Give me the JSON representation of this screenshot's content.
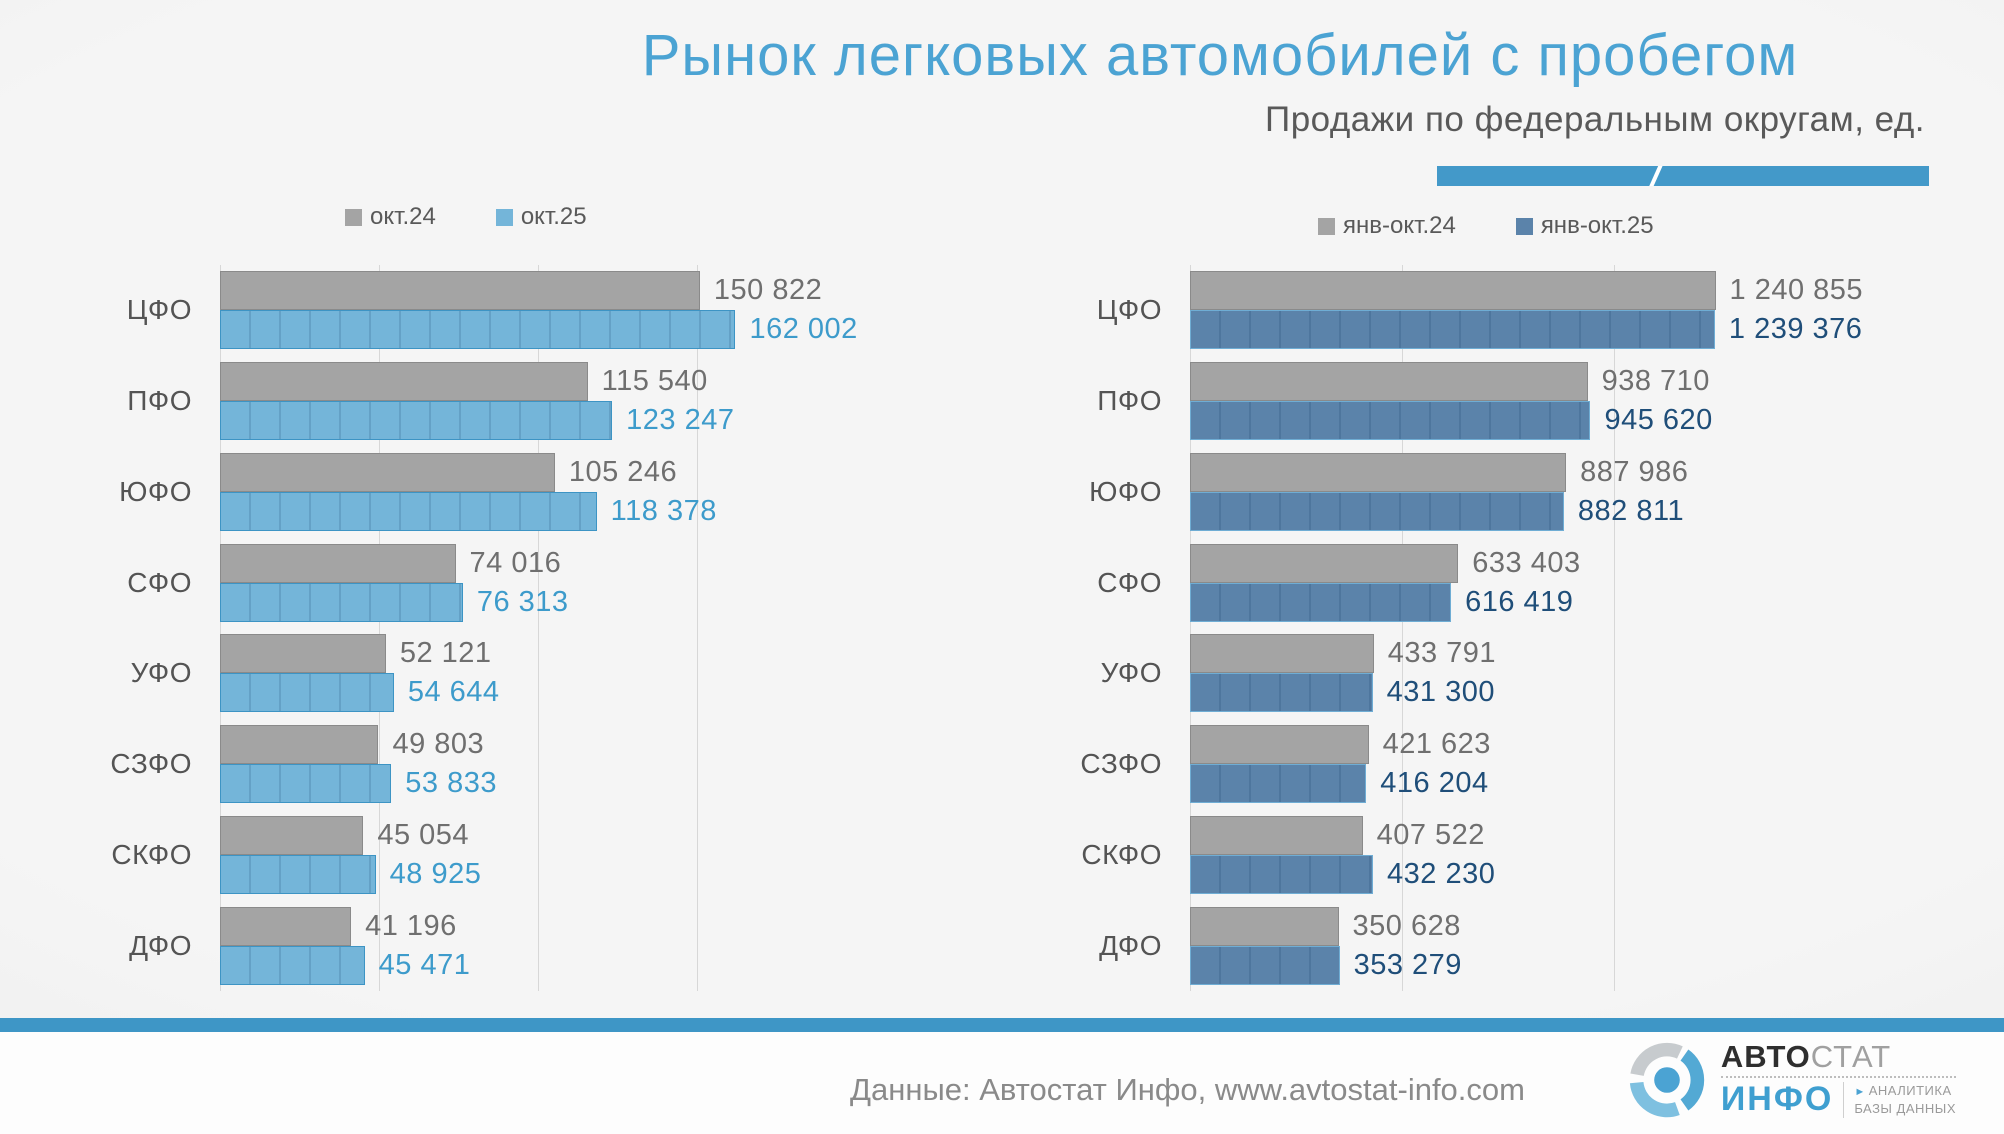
{
  "page": {
    "title": "Рынок легковых автомобилей с пробегом",
    "subtitle": "Продажи по федеральным округам, ед.",
    "footer": {
      "source_text": "Данные: Автостат Инфо, www.avtostat-info.com"
    },
    "logo": {
      "brand_part1": "АВТО",
      "brand_part2": "СТАТ",
      "brand_sub": "ИНФО",
      "tagline_arrow": "►",
      "tagline_line1": "АНАЛИТИКА",
      "tagline_line2": "БАЗЫ ДАННЫХ"
    }
  },
  "colors": {
    "title": "#4ba3d3",
    "subtitle": "#595959",
    "accent_ribbon": "#4399c9",
    "bottom_stripe": "#3e96c6",
    "gridline": "#d7d7d7",
    "category_label": "#545454"
  },
  "chart_data": [
    {
      "type": "bar",
      "orientation": "horizontal",
      "legend_position": "top",
      "categories": [
        "ЦФО",
        "ПФО",
        "ЮФО",
        "СФО",
        "УФО",
        "СЗФО",
        "СКФО",
        "ДФО"
      ],
      "series": [
        {
          "name": "окт.24",
          "color": "#a4a4a4",
          "border_color": "#8a8a8a",
          "label_color": "#6f6f6f",
          "segmented": false,
          "values": [
            150822,
            115540,
            105246,
            74016,
            52121,
            49803,
            45054,
            41196
          ]
        },
        {
          "name": "окт.25",
          "color": "#74b5d9",
          "border_color": "#3d94c4",
          "label_color": "#3d9bcb",
          "segmented": true,
          "values": [
            162002,
            123247,
            118378,
            76313,
            54644,
            53833,
            48925,
            45471
          ]
        }
      ],
      "xlim": [
        0,
        220000
      ],
      "grid_step": 50000,
      "grid_on": true
    },
    {
      "type": "bar",
      "orientation": "horizontal",
      "legend_position": "top",
      "categories": [
        "ЦФО",
        "ПФО",
        "ЮФО",
        "СФО",
        "УФО",
        "СЗФО",
        "СКФО",
        "ДФО"
      ],
      "series": [
        {
          "name": "янв-окт.24",
          "color": "#a4a4a4",
          "border_color": "#8a8a8a",
          "label_color": "#6f6f6f",
          "segmented": false,
          "values": [
            1240855,
            938710,
            887986,
            633403,
            433791,
            421623,
            407522,
            350628
          ]
        },
        {
          "name": "янв-окт.25",
          "color": "#5b83aa",
          "border_color": "#6fadd4",
          "label_color": "#1f4e79",
          "segmented": true,
          "values": [
            1239376,
            945620,
            882811,
            616419,
            431300,
            416204,
            432230,
            353279
          ]
        }
      ],
      "xlim": [
        0,
        1700000
      ],
      "grid_step": 500000,
      "grid_on": true
    }
  ]
}
